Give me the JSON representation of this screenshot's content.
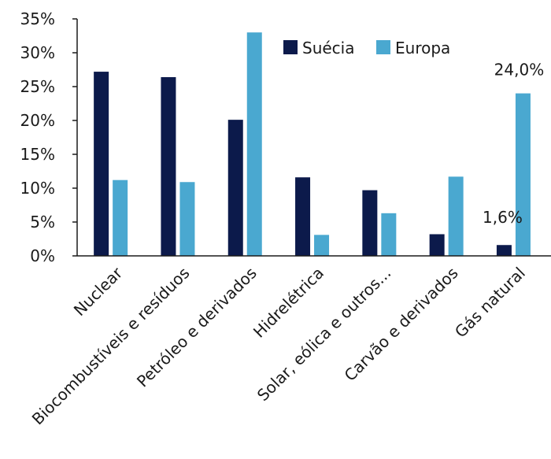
{
  "chart_data": {
    "type": "bar",
    "categories": [
      "Nuclear",
      "Biocombustíveis e resíduos",
      "Petróleo e derivados",
      "Hidrelétrica",
      "Solar, eólica e outros...",
      "Carvão e derivados",
      "Gás natural"
    ],
    "series": [
      {
        "name": "Suécia",
        "color": "#0c1a4b",
        "values": [
          27.2,
          26.4,
          20.1,
          11.6,
          9.7,
          3.2,
          1.6
        ]
      },
      {
        "name": "Europa",
        "color": "#4aa8d0",
        "values": [
          11.2,
          10.9,
          33.0,
          3.1,
          6.3,
          11.7,
          24.0
        ]
      }
    ],
    "ylim": [
      0,
      35
    ],
    "yticks": [
      0,
      5,
      10,
      15,
      20,
      25,
      30,
      35
    ],
    "ytick_labels": [
      "0%",
      "5%",
      "10%",
      "15%",
      "20%",
      "25%",
      "30%",
      "35%"
    ],
    "legend_position": "top-right",
    "grid": false,
    "annotations": [
      {
        "category": "Gás natural",
        "series": "Suécia",
        "text": "1,6%"
      },
      {
        "category": "Gás natural",
        "series": "Europa",
        "text": "24,0%"
      }
    ]
  }
}
